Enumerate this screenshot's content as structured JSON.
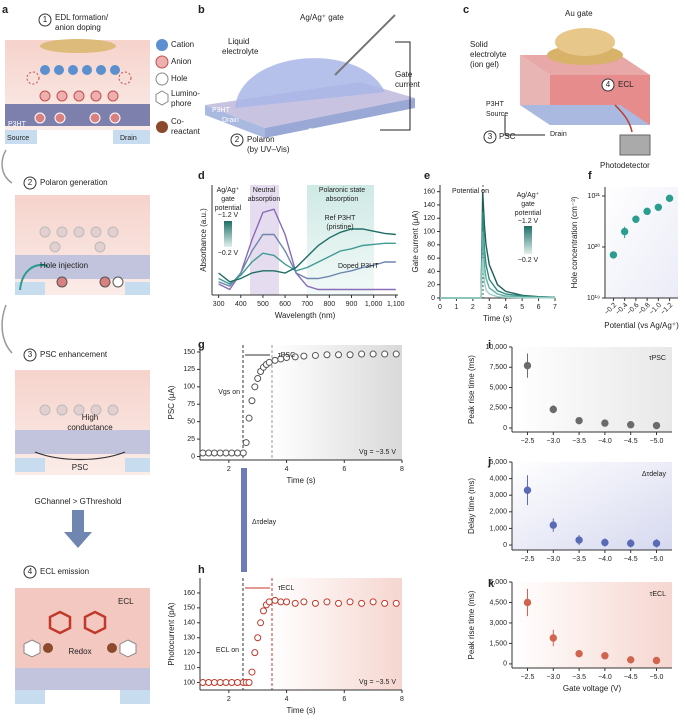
{
  "diagrams": {
    "a": {
      "letter": "a",
      "step1": {
        "number": "1",
        "title": [
          "EDL formation/",
          "anion doping"
        ]
      },
      "legend": [
        "Cation",
        "Anion",
        "Hole",
        [
          "Lumino-",
          "phore"
        ],
        [
          "Co-",
          "reactant"
        ]
      ],
      "p3ht": "P3HT",
      "source": "Source",
      "drain": "Drain",
      "step2": {
        "number": "2",
        "title": "Polaron generation",
        "label": "Hole injection"
      },
      "step3": {
        "number": "3",
        "title": "PSC enhancement",
        "label": [
          "High",
          "conductance"
        ],
        "current": "PSC"
      },
      "condition": "GChannel > GThreshold",
      "step4": {
        "number": "4",
        "title": "ECL emission",
        "ecl": "ECL",
        "label": "Redox"
      }
    },
    "b": {
      "letter": "b",
      "gate": "Ag/Ag⁺ gate",
      "electrolyte": [
        "Liquid",
        "electrolyte"
      ],
      "current": [
        "Gate",
        "current"
      ],
      "p3ht": "P3HT",
      "drain": "Drain",
      "source": "Source",
      "number": "2",
      "polaron": [
        "Polaron",
        "(by UV–Vis)"
      ]
    },
    "c": {
      "letter": "c",
      "gate": "Au gate",
      "electrolyte": [
        "Solid",
        "electrolyte",
        "(ion gel)"
      ],
      "number_ecl": "4",
      "ecl": "ECL",
      "p3ht": "P3HT",
      "source": "Source",
      "drain": "Drain",
      "number_psc": "3",
      "psc": "PSC",
      "detector": "Photodetector"
    }
  },
  "chart_data": [
    {
      "panel": "d",
      "type": "line",
      "xlabel": "Wavelength (nm)",
      "ylabel": "Absorbance (a.u.)",
      "x": [
        300,
        350,
        400,
        450,
        500,
        550,
        600,
        650,
        700,
        750,
        800,
        850,
        900,
        950,
        1000,
        1050,
        1100
      ],
      "xlim": [
        270,
        1110
      ],
      "xticks": [
        300,
        400,
        500,
        600,
        700,
        800,
        900,
        {
          "value": 1000,
          "label": "1,000"
        },
        {
          "value": 1100,
          "label": "1,100"
        }
      ],
      "ylim": [
        0,
        1
      ],
      "series": [
        {
          "color": "#8a6bb8",
          "values": [
            0.1,
            0.05,
            0.2,
            0.5,
            0.75,
            0.78,
            0.55,
            0.2,
            0.08,
            0.05,
            0.05,
            0.05,
            0.05,
            0.05,
            0.05,
            0.05,
            0.05
          ]
        },
        {
          "color": "#6f86b0",
          "values": [
            0.12,
            0.08,
            0.2,
            0.4,
            0.55,
            0.55,
            0.4,
            0.2,
            0.15,
            0.15,
            0.17,
            0.2,
            0.22,
            0.25,
            0.27,
            0.3,
            0.3
          ]
        },
        {
          "color": "#3f9b94",
          "values": [
            0.15,
            0.1,
            0.18,
            0.3,
            0.38,
            0.36,
            0.28,
            0.22,
            0.25,
            0.3,
            0.35,
            0.4,
            0.42,
            0.45,
            0.46,
            0.47,
            0.47
          ]
        },
        {
          "color": "#1f6e66",
          "values": [
            0.2,
            0.12,
            0.15,
            0.2,
            0.22,
            0.22,
            0.2,
            0.25,
            0.35,
            0.45,
            0.52,
            0.57,
            0.6,
            0.6,
            0.58,
            0.56,
            0.55
          ]
        }
      ],
      "annotations": [
        [
          "Ag/Ag⁺",
          "gate",
          "potential"
        ],
        "−1.2 V",
        "−0.2 V",
        [
          "Neutral",
          "absorption"
        ],
        [
          "Ref P3HT",
          "(pristine)"
        ],
        "Doped P3HT",
        [
          "Polaronic state",
          "absorption"
        ]
      ]
    },
    {
      "panel": "e",
      "type": "line",
      "xlabel": "Time (s)",
      "ylabel": "Gate current (μA)",
      "x": [
        0,
        1,
        2,
        2.5,
        2.6,
        2.7,
        2.8,
        3,
        3.5,
        4,
        5,
        6,
        7
      ],
      "xlim": [
        0,
        7
      ],
      "xticks": [
        0,
        1,
        2,
        3,
        4,
        5,
        6,
        7
      ],
      "ylim": [
        0,
        170
      ],
      "yticks": [
        0,
        20,
        40,
        60,
        80,
        100,
        120,
        140,
        160
      ],
      "series": [
        {
          "color": "#1d5f58",
          "values": [
            0,
            0,
            0,
            0,
            160,
            110,
            80,
            50,
            20,
            10,
            4,
            2,
            1
          ]
        },
        {
          "color": "#2f8a80",
          "values": [
            0,
            0,
            0,
            0,
            130,
            75,
            50,
            28,
            11,
            6,
            3,
            1.5,
            1
          ]
        },
        {
          "color": "#5fb0a4",
          "values": [
            0,
            0,
            0,
            0,
            100,
            50,
            30,
            15,
            6,
            3,
            1.5,
            1,
            0.5
          ]
        },
        {
          "color": "#9fd0c8",
          "values": [
            0,
            0,
            0,
            0,
            60,
            25,
            12,
            6,
            2,
            1,
            0.5,
            0.3,
            0.2
          ]
        }
      ],
      "annotations": [
        "Potential on",
        [
          "Ag/Ag⁺",
          "gate",
          "potential"
        ],
        "−1.2 V",
        "−0.2 V"
      ]
    },
    {
      "panel": "f",
      "type": "scatter",
      "xlabel": "Potential (vs Ag/Ag⁺)",
      "ylabel": "Hole concentration (cm⁻³)",
      "x": [
        -0.2,
        -0.4,
        -0.6,
        -0.8,
        -1.0,
        -1.2
      ],
      "xlim": [
        -0.05,
        -1.35
      ],
      "xticks": [
        {
          "value": -0.2,
          "label": "−0.2"
        },
        {
          "value": -0.4,
          "label": "−0.4"
        },
        {
          "value": -0.6,
          "label": "−0.6"
        },
        {
          "value": -0.8,
          "label": "−0.8"
        },
        {
          "value": -1.0,
          "label": "−1.0"
        },
        {
          "value": -1.2,
          "label": "−1.2"
        }
      ],
      "ylog": true,
      "ylim": [
        1e+19,
        1.5e+21
      ],
      "yticks": [
        {
          "value": 1e+19,
          "label": "10¹⁹"
        },
        {
          "value": 1e+20,
          "label": "10²⁰"
        },
        {
          "value": 1e+21,
          "label": "10²¹"
        }
      ],
      "series": [
        {
          "color": "#2a9d8f",
          "values": [
            7e+19,
            2e+20,
            3.5e+20,
            5e+20,
            6e+20,
            9e+20
          ],
          "errors": [
            null,
            5e+19,
            null,
            null,
            null,
            null
          ]
        }
      ]
    },
    {
      "panel": "g",
      "type": "scatter",
      "xlabel": "Time (s)",
      "ylabel": "PSC (μA)",
      "x": [
        1.1,
        1.3,
        1.5,
        1.7,
        1.9,
        2.1,
        2.3,
        2.5,
        2.6,
        2.7,
        2.8,
        2.9,
        3.0,
        3.1,
        3.2,
        3.3,
        3.4,
        3.6,
        3.8,
        4.0,
        4.3,
        4.6,
        5.0,
        5.4,
        5.8,
        6.2,
        6.6,
        7.0,
        7.4,
        7.8
      ],
      "xlim": [
        1,
        8
      ],
      "xticks": [
        2,
        4,
        6,
        8
      ],
      "ylim": [
        -5,
        160
      ],
      "yticks": [
        0,
        25,
        50,
        75,
        100,
        125,
        150
      ],
      "series": [
        {
          "color": "#555555",
          "hollow": true,
          "values": [
            5,
            5,
            5,
            5,
            5,
            5,
            5,
            5,
            20,
            55,
            80,
            100,
            112,
            122,
            128,
            132,
            135,
            138,
            140,
            142,
            143,
            144,
            145,
            146,
            146,
            146,
            147,
            147,
            147,
            147
          ]
        }
      ],
      "annotations": [
        "Vgs on",
        "τPSC",
        "Vg = −3.5 V"
      ]
    },
    {
      "panel": "h",
      "type": "scatter",
      "xlabel": "Time (s)",
      "ylabel": "Photocurrent (pA)",
      "x": [
        1.1,
        1.3,
        1.5,
        1.7,
        1.9,
        2.1,
        2.3,
        2.5,
        2.6,
        2.7,
        2.8,
        2.9,
        3.0,
        3.1,
        3.2,
        3.3,
        3.4,
        3.6,
        3.8,
        4.0,
        4.3,
        4.6,
        5.0,
        5.4,
        5.8,
        6.2,
        6.6,
        7.0,
        7.4,
        7.8
      ],
      "xlim": [
        1,
        8
      ],
      "xticks": [
        2,
        4,
        6,
        8
      ],
      "ylim": [
        95,
        170
      ],
      "yticks": [
        100,
        110,
        120,
        130,
        140,
        150,
        160
      ],
      "series": [
        {
          "color": "#c0392b",
          "hollow": true,
          "values": [
            100,
            100,
            100,
            100,
            100,
            100,
            100,
            100,
            100,
            100,
            107,
            120,
            130,
            140,
            148,
            152,
            154,
            155,
            154,
            154,
            153,
            154,
            153,
            154,
            153,
            154,
            153,
            154,
            153,
            153
          ]
        }
      ],
      "annotations": [
        "ECL on",
        "τECL",
        "Vg = −3.5 V",
        "Δτdelay"
      ]
    },
    {
      "panel": "i",
      "type": "scatter",
      "ylabel": "Peak rise time (ms)",
      "x": [
        -2.5,
        -3.0,
        -3.5,
        -4.0,
        -4.5,
        -5.0
      ],
      "xlim": [
        -2.2,
        -5.3
      ],
      "xticks": [
        {
          "value": -2.5,
          "label": "−2.5"
        },
        {
          "value": -3.0,
          "label": "−3.0"
        },
        {
          "value": -3.5,
          "label": "−3.5"
        },
        {
          "value": -4.0,
          "label": "−4.0"
        },
        {
          "value": -4.5,
          "label": "−4.5"
        },
        {
          "value": -5.0,
          "label": "−5.0"
        }
      ],
      "ylim": [
        -500,
        10000
      ],
      "yticks": [
        0,
        {
          "value": 2500,
          "label": "2,500"
        },
        {
          "value": 5000,
          "label": "5,000"
        },
        {
          "value": 7500,
          "label": "7,500"
        },
        {
          "value": 10000,
          "label": "10,000"
        }
      ],
      "series": [
        {
          "color": "#6b6b6b",
          "values": [
            7700,
            2300,
            900,
            600,
            400,
            300
          ],
          "errors": [
            1500,
            500,
            200,
            100,
            80,
            60
          ]
        }
      ],
      "annotations": [
        "τPSC"
      ]
    },
    {
      "panel": "j",
      "type": "scatter",
      "ylabel": "Delay time (ms)",
      "x": [
        -2.5,
        -3.0,
        -3.5,
        -4.0,
        -4.5,
        -5.0
      ],
      "xlim": [
        -2.2,
        -5.3
      ],
      "xticks": [
        {
          "value": -2.5,
          "label": "−2.5"
        },
        {
          "value": -3.0,
          "label": "−3.0"
        },
        {
          "value": -3.5,
          "label": "−3.5"
        },
        {
          "value": -4.0,
          "label": "−4.0"
        },
        {
          "value": -4.5,
          "label": "−4.5"
        },
        {
          "value": -5.0,
          "label": "−5.0"
        }
      ],
      "ylim": [
        -300,
        5000
      ],
      "yticks": [
        0,
        {
          "value": 1000,
          "label": "1,000"
        },
        {
          "value": 2000,
          "label": "2,000"
        },
        {
          "value": 3000,
          "label": "3,000"
        },
        {
          "value": 4000,
          "label": "4,000"
        },
        {
          "value": 5000,
          "label": "5,000"
        }
      ],
      "series": [
        {
          "color": "#5a6bb5",
          "values": [
            3300,
            1200,
            300,
            150,
            100,
            100
          ],
          "errors": [
            900,
            400,
            300,
            250,
            250,
            250
          ]
        }
      ],
      "annotations": [
        "Δτdelay"
      ]
    },
    {
      "panel": "k",
      "type": "scatter",
      "xlabel": "Gate voltage (V)",
      "ylabel": "Peak rise time (ms)",
      "x": [
        -2.5,
        -3.0,
        -3.5,
        -4.0,
        -4.5,
        -5.0
      ],
      "xlim": [
        -2.2,
        -5.3
      ],
      "xticks": [
        {
          "value": -2.5,
          "label": "−2.5"
        },
        {
          "value": -3.0,
          "label": "−3.0"
        },
        {
          "value": -3.5,
          "label": "−3.5"
        },
        {
          "value": -4.0,
          "label": "−4.0"
        },
        {
          "value": -4.5,
          "label": "−4.5"
        },
        {
          "value": -5.0,
          "label": "−5.0"
        }
      ],
      "ylim": [
        -300,
        6000
      ],
      "yticks": [
        0,
        {
          "value": 1500,
          "label": "1,500"
        },
        {
          "value": 3000,
          "label": "3,000"
        },
        {
          "value": 4500,
          "label": "4,500"
        },
        {
          "value": 6000,
          "label": "6,000"
        }
      ],
      "series": [
        {
          "color": "#d0644f",
          "values": [
            4500,
            1900,
            750,
            600,
            300,
            250
          ],
          "errors": [
            1000,
            600,
            250,
            250,
            150,
            100
          ]
        }
      ],
      "annotations": [
        "τECL"
      ]
    }
  ]
}
